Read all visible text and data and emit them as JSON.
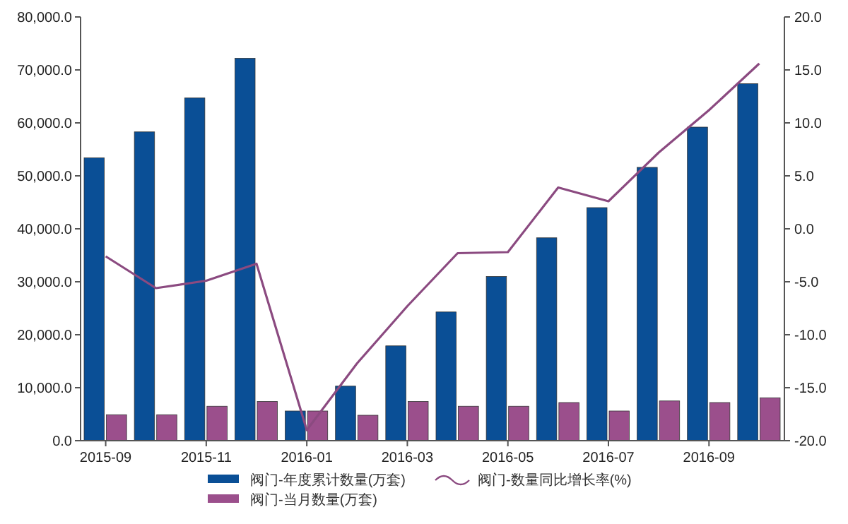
{
  "chart_data": {
    "type": "bar",
    "categories": [
      "2015-09",
      null,
      "2015-11",
      null,
      "2016-01",
      null,
      "2016-03",
      null,
      "2016-05",
      null,
      "2016-07",
      null,
      "2016-09",
      null
    ],
    "series": [
      {
        "name": "阀门-年度累计数量(万套)",
        "color": "#0a4f96",
        "values": [
          53400,
          58300,
          64700,
          72200,
          5600,
          10300,
          17900,
          24300,
          31000,
          38300,
          44000,
          51600,
          59200,
          67400
        ]
      },
      {
        "name": "阀门-当月数量(万套)",
        "color": "#9b4f8c",
        "values": [
          4900,
          4900,
          6500,
          7400,
          5600,
          4800,
          7400,
          6500,
          6500,
          7200,
          5600,
          7500,
          7200,
          8100
        ]
      },
      {
        "name": "阀门-数量同比增长率(%)",
        "type": "line",
        "axis": "y2",
        "color": "#8b4a80",
        "values": [
          -2.6,
          -5.6,
          -4.9,
          -3.3,
          -19.0,
          -12.7,
          -7.3,
          -2.3,
          -2.2,
          3.9,
          2.6,
          7.2,
          11.2,
          15.6
        ]
      }
    ],
    "ylim": [
      0,
      80000
    ],
    "yticks": [
      {
        "value": 0,
        "label": "0.0"
      },
      {
        "value": 10000,
        "label": "10,000.0"
      },
      {
        "value": 20000,
        "label": "20,000.0"
      },
      {
        "value": 30000,
        "label": "30,000.0"
      },
      {
        "value": 40000,
        "label": "40,000.0"
      },
      {
        "value": 50000,
        "label": "50,000.0"
      },
      {
        "value": 60000,
        "label": "60,000.0"
      },
      {
        "value": 70000,
        "label": "70,000.0"
      },
      {
        "value": 80000,
        "label": "80,000.0"
      }
    ],
    "y2lim": [
      -20,
      20
    ],
    "y2ticks": [
      {
        "value": -20,
        "label": "-20.0"
      },
      {
        "value": -15,
        "label": "-15.0"
      },
      {
        "value": -10,
        "label": "-10.0"
      },
      {
        "value": -5,
        "label": "-5.0"
      },
      {
        "value": 0,
        "label": "0.0"
      },
      {
        "value": 5,
        "label": "5.0"
      },
      {
        "value": 10,
        "label": "10.0"
      },
      {
        "value": 15,
        "label": "15.0"
      },
      {
        "value": 20,
        "label": "20.0"
      }
    ],
    "legend": "bottom",
    "grid": false,
    "marker": "none"
  }
}
